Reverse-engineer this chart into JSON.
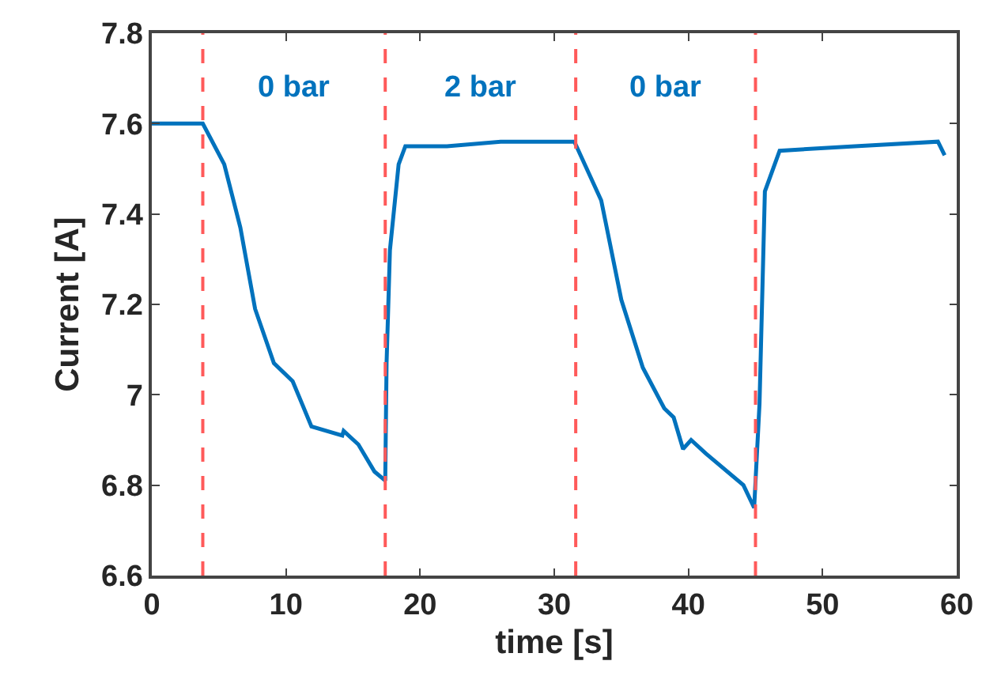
{
  "chart_data": {
    "type": "line",
    "xlabel": "time [s]",
    "ylabel": "Current [A]",
    "x": [
      0,
      1,
      2,
      3,
      3.8,
      5.4,
      6.6,
      7.7,
      9.1,
      10.5,
      11.9,
      14.2,
      14.3,
      15.4,
      16.6,
      17.4,
      17.5,
      17.75,
      18.4,
      18.9,
      22,
      26,
      31.5,
      33.5,
      35.0,
      36.6,
      38.2,
      38.9,
      39.6,
      40.2,
      41.3,
      44.1,
      44.9,
      45.3,
      45.7,
      46.8,
      52.4,
      58.6,
      59.1
    ],
    "series": [
      {
        "color": "#0072bd",
        "values": [
          7.6,
          7.6,
          7.6,
          7.6,
          7.6,
          7.51,
          7.37,
          7.19,
          7.07,
          7.03,
          6.93,
          6.91,
          6.92,
          6.89,
          6.83,
          6.81,
          7.07,
          7.32,
          7.51,
          7.55,
          7.55,
          7.56,
          7.56,
          7.43,
          7.21,
          7.06,
          6.97,
          6.95,
          6.88,
          6.9,
          6.87,
          6.8,
          6.75,
          6.98,
          7.45,
          7.54,
          7.55,
          7.56,
          7.53
        ]
      }
    ],
    "xlim": [
      0,
      60
    ],
    "xticks": [
      0,
      10,
      20,
      30,
      40,
      50,
      60
    ],
    "ylim": [
      6.6,
      7.8
    ],
    "yticks": [
      6.6,
      6.8,
      7,
      7.2,
      7.4,
      7.6,
      7.8
    ],
    "ref_lines": [
      {
        "axis": "x",
        "value": 3.8,
        "color": "#ff5a5a",
        "line_style": "dashed"
      },
      {
        "axis": "x",
        "value": 17.4,
        "color": "#ff5a5a",
        "line_style": "dashed"
      },
      {
        "axis": "x",
        "value": 31.6,
        "color": "#ff5a5a",
        "line_style": "dashed"
      },
      {
        "axis": "x",
        "value": 45.0,
        "color": "#ff5a5a",
        "line_style": "dashed"
      }
    ],
    "annotations": [
      "0 bar",
      "2 bar",
      "0 bar"
    ],
    "marker": "none",
    "line_style": "solid"
  }
}
